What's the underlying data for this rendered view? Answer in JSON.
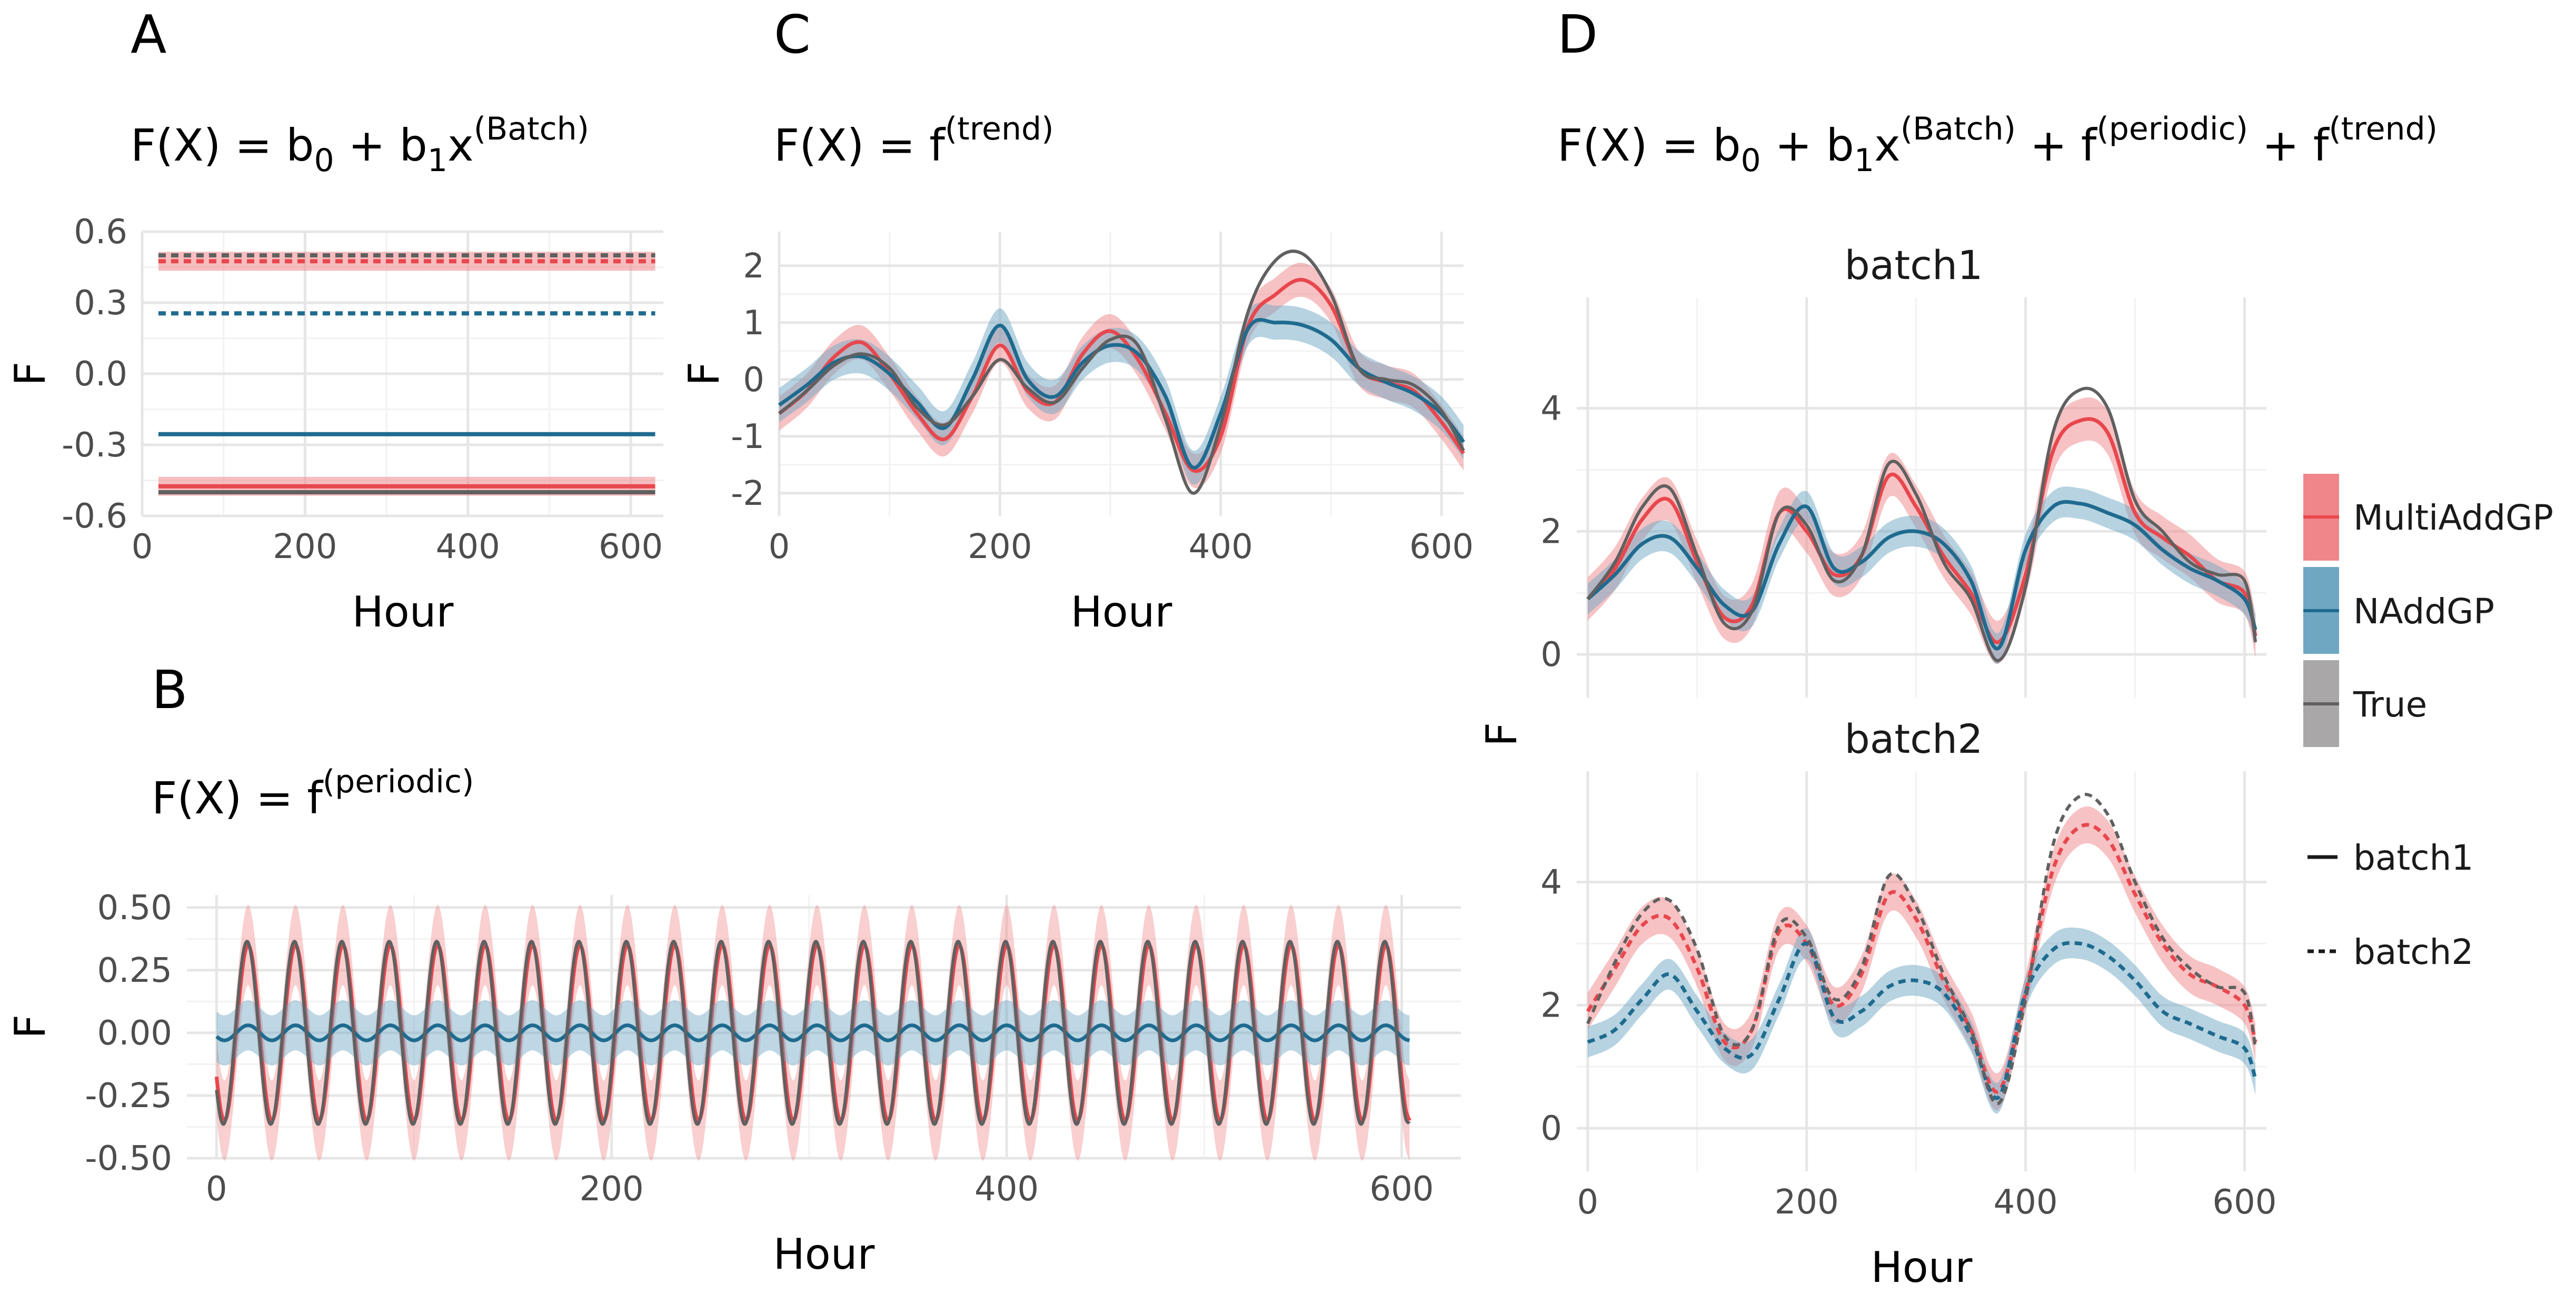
{
  "panels": {
    "A": {
      "letter": "A",
      "formula": {
        "pre": "F(X) = b",
        "s1": "0",
        "mid": " + b",
        "s2": "1",
        "post": "x",
        "sup": "(Batch)",
        "rest": ""
      }
    },
    "B": {
      "letter": "B",
      "formula": {
        "pre": "F(X) = f",
        "sup": "(periodic)"
      }
    },
    "C": {
      "letter": "C",
      "formula": {
        "pre": "F(X) = f",
        "sup": "(trend)"
      }
    },
    "D": {
      "letter": "D",
      "formula": {
        "pre": "F(X) = b",
        "s1": "0",
        "mid": " + b",
        "s2": "1",
        "post": "x",
        "sup": "(Batch)",
        "plus1": " + f",
        "sup2": "(periodic)",
        "plus2": " + f",
        "sup3": "(trend)"
      }
    }
  },
  "legend": {
    "models": [
      {
        "label": "MultiAddGP",
        "color": "#e8474d",
        "fill": "#f0868a"
      },
      {
        "label": "NAddGP",
        "color": "#1f6b8f",
        "fill": "#6fa7c3"
      },
      {
        "label": "True",
        "color": "#606060",
        "fill": "#a9a7a7"
      }
    ],
    "linetypes": [
      {
        "label": "batch1",
        "dash": "solid"
      },
      {
        "label": "batch2",
        "dash": "dashed"
      }
    ]
  },
  "chart_data": [
    {
      "id": "A",
      "type": "line",
      "xlabel": "Hour",
      "ylabel": "F",
      "xlim": [
        0,
        640
      ],
      "ylim": [
        -0.6,
        0.6
      ],
      "xticks": [
        "0",
        "200",
        "400",
        "600"
      ],
      "yticks": [
        "-0.6",
        "-0.3",
        "0.0",
        "0.3",
        "0.6"
      ],
      "series": [
        {
          "model": "MultiAddGP",
          "batch": "batch1",
          "value": -0.475,
          "band": 0.04
        },
        {
          "model": "MultiAddGP",
          "batch": "batch2",
          "value": 0.475,
          "band": 0.04
        },
        {
          "model": "NAddGP",
          "batch": "batch1",
          "value": -0.255,
          "band": 0.0
        },
        {
          "model": "NAddGP",
          "batch": "batch2",
          "value": 0.255,
          "band": 0.0
        },
        {
          "model": "True",
          "batch": "batch1",
          "value": -0.5
        },
        {
          "model": "True",
          "batch": "batch2",
          "value": 0.5
        }
      ]
    },
    {
      "id": "C",
      "type": "line",
      "xlabel": "Hour",
      "ylabel": "F",
      "xlim": [
        0,
        620
      ],
      "ylim": [
        -2.4,
        2.6
      ],
      "xticks": [
        "0",
        "200",
        "400",
        "600"
      ],
      "yticks": [
        "-2",
        "-1",
        "0",
        "1",
        "2"
      ],
      "x": [
        0,
        25,
        50,
        75,
        100,
        125,
        150,
        175,
        200,
        225,
        250,
        275,
        300,
        325,
        350,
        375,
        400,
        425,
        450,
        475,
        500,
        525,
        550,
        575,
        600,
        620
      ],
      "series": [
        {
          "model": "MultiAddGP",
          "values": [
            -0.6,
            -0.2,
            0.4,
            0.65,
            0.1,
            -0.6,
            -1.05,
            -0.3,
            0.6,
            -0.2,
            -0.4,
            0.45,
            0.85,
            0.35,
            -0.6,
            -1.6,
            -1.0,
            0.95,
            1.5,
            1.75,
            1.3,
            0.2,
            -0.05,
            -0.2,
            -0.75,
            -1.3
          ],
          "band": 0.3
        },
        {
          "model": "NAddGP",
          "values": [
            -0.45,
            -0.1,
            0.3,
            0.4,
            0.1,
            -0.4,
            -0.85,
            0.0,
            0.95,
            0.0,
            -0.3,
            0.3,
            0.6,
            0.45,
            -0.3,
            -1.55,
            -0.6,
            0.9,
            1.0,
            0.95,
            0.7,
            0.2,
            -0.05,
            -0.25,
            -0.6,
            -1.1
          ],
          "band": 0.3
        },
        {
          "model": "True",
          "values": [
            -0.6,
            -0.2,
            0.25,
            0.45,
            0.2,
            -0.5,
            -0.8,
            -0.3,
            0.35,
            -0.15,
            -0.4,
            0.2,
            0.7,
            0.6,
            -0.7,
            -2.0,
            -0.8,
            1.2,
            2.1,
            2.2,
            1.5,
            0.2,
            0.0,
            -0.1,
            -0.55,
            -1.25
          ]
        }
      ]
    },
    {
      "id": "B",
      "type": "line",
      "xlabel": "Hour",
      "ylabel": "F",
      "xlim": [
        -15,
        630
      ],
      "ylim": [
        -0.5,
        0.55
      ],
      "xticks": [
        "0",
        "200",
        "400",
        "600"
      ],
      "yticks": [
        "-0.50",
        "-0.25",
        "0.00",
        "0.25",
        "0.50"
      ],
      "period": 24,
      "series": [
        {
          "model": "MultiAddGP",
          "amplitude": 0.35,
          "band": 0.16
        },
        {
          "model": "NAddGP",
          "amplitude": 0.03,
          "band": 0.1
        },
        {
          "model": "True",
          "amplitude": 0.365
        }
      ]
    },
    {
      "id": "D1",
      "type": "line",
      "facet": "batch1",
      "xlabel": "Hour",
      "ylabel": "F",
      "xlim": [
        -10,
        620
      ],
      "ylim": [
        -0.7,
        5.8
      ],
      "xticks": [
        "0",
        "200",
        "400",
        "600"
      ],
      "yticks": [
        "0",
        "2",
        "4"
      ],
      "x": [
        0,
        25,
        50,
        75,
        100,
        125,
        150,
        175,
        200,
        225,
        250,
        275,
        300,
        325,
        350,
        375,
        400,
        425,
        450,
        475,
        500,
        525,
        550,
        575,
        600,
        610
      ],
      "series": [
        {
          "model": "MultiAddGP",
          "batch": "batch1",
          "values": [
            0.9,
            1.4,
            2.2,
            2.5,
            1.5,
            0.6,
            0.8,
            2.3,
            2.0,
            1.3,
            1.6,
            2.9,
            2.4,
            1.6,
            1.0,
            0.2,
            1.3,
            3.3,
            3.8,
            3.6,
            2.3,
            1.9,
            1.6,
            1.2,
            1.0,
            0.3
          ],
          "band": 0.35
        },
        {
          "model": "NAddGP",
          "batch": "batch1",
          "values": [
            0.9,
            1.3,
            1.8,
            1.9,
            1.4,
            0.8,
            0.7,
            1.8,
            2.4,
            1.4,
            1.5,
            1.9,
            2.0,
            1.8,
            1.2,
            0.1,
            1.7,
            2.4,
            2.45,
            2.3,
            2.1,
            1.7,
            1.4,
            1.2,
            0.9,
            0.4
          ],
          "band": 0.25
        },
        {
          "model": "True",
          "batch": "batch1",
          "values": [
            0.9,
            1.5,
            2.4,
            2.7,
            1.6,
            0.5,
            0.7,
            2.3,
            2.1,
            1.2,
            1.6,
            3.1,
            2.6,
            1.5,
            0.9,
            -0.1,
            1.1,
            3.6,
            4.3,
            4.0,
            2.5,
            2.0,
            1.5,
            1.3,
            1.2,
            0.2
          ]
        }
      ]
    },
    {
      "id": "D2",
      "type": "line",
      "facet": "batch2",
      "xlabel": "Hour",
      "ylabel": "F",
      "xlim": [
        -10,
        620
      ],
      "ylim": [
        -0.7,
        5.8
      ],
      "xticks": [
        "0",
        "200",
        "400",
        "600"
      ],
      "yticks": [
        "0",
        "2",
        "4"
      ],
      "x": [
        0,
        25,
        50,
        75,
        100,
        125,
        150,
        175,
        200,
        225,
        250,
        275,
        300,
        325,
        350,
        375,
        400,
        425,
        450,
        475,
        500,
        525,
        550,
        575,
        600,
        610
      ],
      "series": [
        {
          "model": "MultiAddGP",
          "batch": "batch2",
          "values": [
            1.9,
            2.6,
            3.3,
            3.4,
            2.6,
            1.4,
            1.6,
            3.2,
            3.0,
            2.0,
            2.5,
            3.8,
            3.4,
            2.4,
            1.6,
            0.6,
            2.2,
            4.2,
            4.9,
            4.7,
            3.8,
            3.0,
            2.5,
            2.3,
            2.0,
            1.4
          ],
          "band": 0.3
        },
        {
          "model": "NAddGP",
          "batch": "batch2",
          "values": [
            1.4,
            1.6,
            2.1,
            2.5,
            1.9,
            1.3,
            1.2,
            2.1,
            3.0,
            1.8,
            1.9,
            2.3,
            2.4,
            2.2,
            1.5,
            0.5,
            2.2,
            2.9,
            3.0,
            2.8,
            2.4,
            1.9,
            1.7,
            1.5,
            1.3,
            0.8
          ],
          "band": 0.25
        },
        {
          "model": "True",
          "batch": "batch2",
          "values": [
            1.7,
            2.7,
            3.5,
            3.7,
            2.9,
            1.5,
            1.6,
            3.3,
            3.1,
            2.1,
            2.6,
            4.1,
            3.6,
            2.5,
            1.6,
            0.4,
            2.1,
            4.6,
            5.4,
            5.1,
            4.0,
            3.1,
            2.6,
            2.3,
            2.2,
            1.3
          ]
        }
      ]
    }
  ]
}
